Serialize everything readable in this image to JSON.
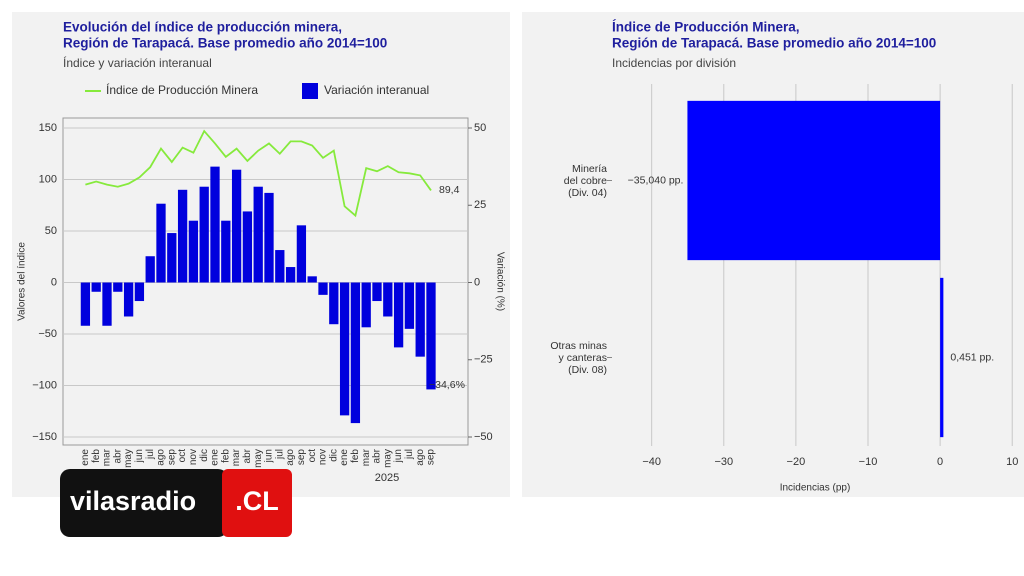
{
  "chart_data": [
    {
      "type": "combo",
      "title": [
        "Evolución del índice de producción minera,",
        "Región de Tarapacá. Base promedio año 2014=100"
      ],
      "subtitle": "Índice y variación interanual",
      "categories": [
        "ene",
        "feb",
        "mar",
        "abr",
        "may",
        "jun",
        "jul",
        "ago",
        "sep",
        "oct",
        "nov",
        "dic",
        "ene",
        "feb",
        "mar",
        "abr",
        "may",
        "jun",
        "jul",
        "ago",
        "sep",
        "oct",
        "nov",
        "dic",
        "ene",
        "feb",
        "mar",
        "abr",
        "may",
        "jun",
        "jul",
        "ago",
        "sep"
      ],
      "x_annotation": "2025",
      "ylabel": "Valores del índice",
      "y2label": "Variación (%)",
      "ylim": [
        -150,
        150
      ],
      "yticks": [
        {
          "value": -150,
          "label": "−150"
        },
        {
          "value": -100,
          "label": "−100"
        },
        {
          "value": -50,
          "label": "−50"
        },
        0,
        50,
        100,
        150
      ],
      "y2lim": [
        -50,
        50
      ],
      "y2ticks": [
        {
          "value": -50,
          "label": "−50"
        },
        {
          "value": -25,
          "label": "−25"
        },
        0,
        25,
        50
      ],
      "grid": true,
      "legend": "top",
      "series": [
        {
          "name": "Índice de Producción Minera",
          "type": "line",
          "color": "#86ea3c",
          "values": [
            95,
            98,
            95,
            93,
            96,
            102,
            112,
            130,
            117,
            131,
            126,
            147,
            135,
            122,
            130,
            118,
            128,
            135,
            125,
            137,
            137,
            133,
            121,
            128,
            74,
            65,
            111,
            108,
            113,
            107,
            106,
            104,
            89.4
          ],
          "value_labels": [
            null,
            null,
            null,
            null,
            null,
            null,
            null,
            null,
            null,
            null,
            null,
            null,
            null,
            null,
            null,
            null,
            null,
            null,
            null,
            null,
            null,
            null,
            null,
            null,
            null,
            null,
            null,
            null,
            null,
            null,
            null,
            null,
            "89,4"
          ]
        },
        {
          "name": "Variación interanual",
          "type": "bar",
          "axis": "y2",
          "color": "#0000dd",
          "values": [
            -14,
            -3,
            -14,
            -3,
            -11,
            -6,
            8.5,
            25.5,
            16,
            30,
            20,
            31,
            37.5,
            20,
            36.5,
            23,
            31,
            29,
            10.5,
            5,
            18.5,
            2,
            -4,
            -13.5,
            -43,
            -45.5,
            -14.5,
            -6,
            -11,
            -21,
            -15,
            -24,
            -34.6
          ],
          "value_labels": [
            null,
            null,
            null,
            null,
            null,
            null,
            null,
            null,
            null,
            null,
            null,
            null,
            null,
            null,
            null,
            null,
            null,
            null,
            null,
            null,
            null,
            null,
            null,
            null,
            null,
            null,
            null,
            null,
            null,
            null,
            null,
            null,
            "−34,6%"
          ]
        }
      ]
    },
    {
      "type": "barh",
      "title": [
        "Índice de Producción Minera,",
        "Región de Tarapacá. Base promedio año 2014=100"
      ],
      "subtitle": "Incidencias por división",
      "categories": [
        "Minería\ndel cobre\n(Div. 04)",
        "Otras minas\ny canteras\n(Div. 08)"
      ],
      "values": [
        -35.04,
        0.451
      ],
      "value_labels": [
        "−35,040 pp.",
        "0,451 pp."
      ],
      "color": "#0000ff",
      "xlim": [
        -45.5,
        10.8
      ],
      "xticks": [
        {
          "value": -40,
          "label": "−40"
        },
        {
          "value": -30,
          "label": "−30"
        },
        {
          "value": -20,
          "label": "−20"
        },
        {
          "value": -10,
          "label": "−10"
        },
        0,
        10
      ],
      "xlabel": "Incidencias (pp)",
      "grid": true
    }
  ],
  "logo": {
    "text": "vilasradio",
    "suffix": ".CL"
  }
}
